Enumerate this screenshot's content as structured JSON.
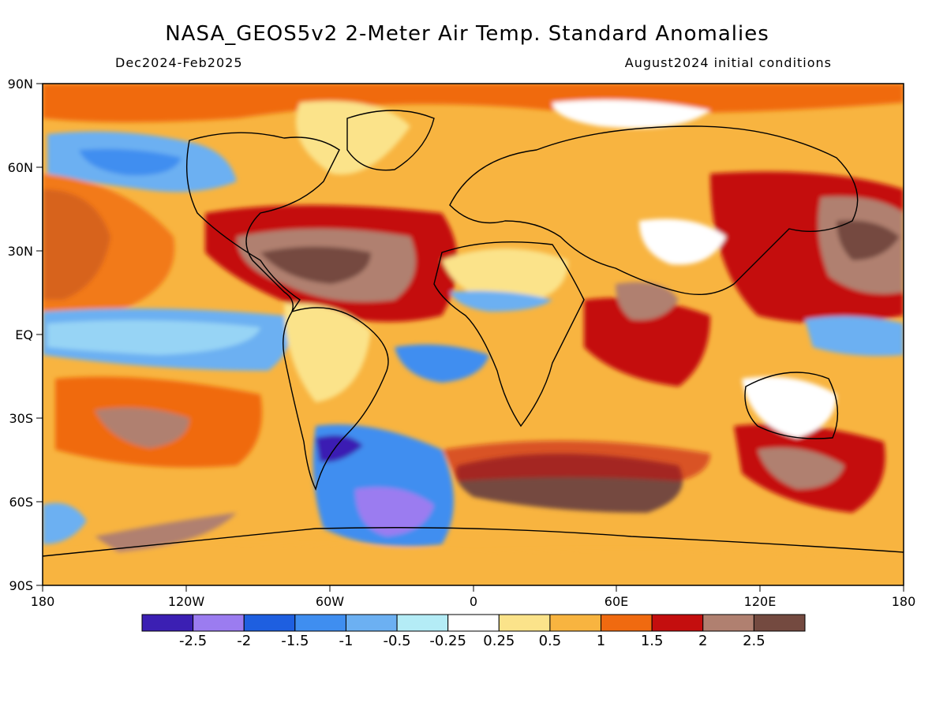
{
  "header": {
    "title": "NASA_GEOS5v2 2-Meter Air Temp. Standard Anomalies",
    "period": "Dec2024-Feb2025",
    "init": "August2024 initial conditions"
  },
  "map": {
    "lat_ticks": [
      "90N",
      "60N",
      "30N",
      "EQ",
      "30S",
      "60S",
      "90S"
    ],
    "lon_ticks": [
      "180",
      "120W",
      "60W",
      "0",
      "60E",
      "120E",
      "180"
    ]
  },
  "colorbar": {
    "colors": [
      "#3b1fb3",
      "#9b7cf0",
      "#1e5fe0",
      "#3f8ef0",
      "#6cb0f2",
      "#b4ecf6",
      "#ffffff",
      "#fbe38a",
      "#f8b440",
      "#f06a10",
      "#c40e0e",
      "#b08070",
      "#744a40"
    ],
    "labels": [
      "-2.5",
      "-2",
      "-1.5",
      "-1",
      "-0.5",
      "-0.25",
      "0.25",
      "0.5",
      "1",
      "1.5",
      "2",
      "2.5"
    ]
  },
  "colors": {
    "background_anomaly": "#f8b440",
    "coastline": "#000000"
  }
}
